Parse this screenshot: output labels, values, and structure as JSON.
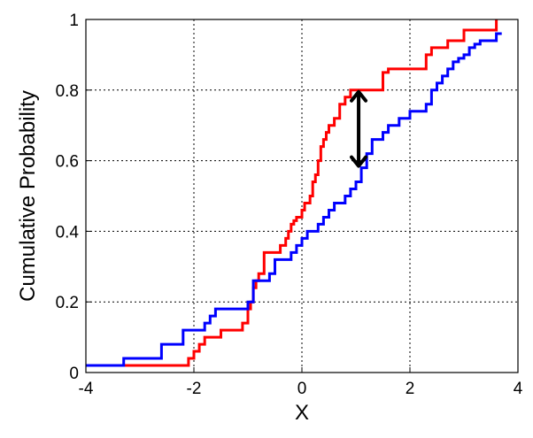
{
  "chart_data": {
    "type": "line",
    "title": "",
    "xlabel": "X",
    "ylabel": "Cumulative Probability",
    "xlim": [
      -4,
      4
    ],
    "ylim": [
      0,
      1
    ],
    "xticks": [
      -4,
      -2,
      0,
      2,
      4
    ],
    "yticks": [
      0,
      0.2,
      0.4,
      0.6,
      0.8,
      1
    ],
    "xtick_labels": [
      "-4",
      "-2",
      "0",
      "2",
      "4"
    ],
    "ytick_labels": [
      "0",
      "0.2",
      "0.4",
      "0.6",
      "0.8",
      "1"
    ],
    "grid": true,
    "grid_style": "dotted",
    "step": true,
    "series": [
      {
        "color": "#ff0000",
        "x": [
          -4.0,
          -2.1,
          -2.0,
          -1.9,
          -1.8,
          -1.5,
          -1.1,
          -1.0,
          -0.95,
          -0.9,
          -0.85,
          -0.8,
          -0.7,
          -0.4,
          -0.3,
          -0.25,
          -0.2,
          -0.15,
          -0.1,
          0.0,
          0.05,
          0.15,
          0.2,
          0.25,
          0.3,
          0.35,
          0.4,
          0.45,
          0.5,
          0.6,
          0.7,
          0.8,
          0.9,
          1.5,
          1.6,
          2.3,
          2.4,
          2.7,
          3.0,
          3.6
        ],
        "y": [
          0.02,
          0.04,
          0.06,
          0.08,
          0.1,
          0.12,
          0.14,
          0.18,
          0.2,
          0.24,
          0.26,
          0.28,
          0.34,
          0.36,
          0.38,
          0.4,
          0.42,
          0.43,
          0.44,
          0.46,
          0.48,
          0.5,
          0.54,
          0.56,
          0.6,
          0.64,
          0.66,
          0.68,
          0.7,
          0.72,
          0.76,
          0.78,
          0.8,
          0.85,
          0.86,
          0.9,
          0.92,
          0.94,
          0.97,
          1.0
        ]
      },
      {
        "color": "#0000ff",
        "x": [
          -4.0,
          -3.3,
          -2.6,
          -2.2,
          -1.8,
          -1.7,
          -1.6,
          -1.5,
          -1.0,
          -0.9,
          -0.6,
          -0.5,
          -0.2,
          -0.1,
          0.0,
          0.1,
          0.3,
          0.4,
          0.5,
          0.6,
          0.8,
          0.9,
          1.0,
          1.1,
          1.2,
          1.3,
          1.5,
          1.6,
          1.8,
          2.0,
          2.3,
          2.4,
          2.5,
          2.6,
          2.7,
          2.8,
          2.9,
          3.0,
          3.1,
          3.2,
          3.3,
          3.6,
          3.7
        ],
        "y": [
          0.02,
          0.04,
          0.08,
          0.12,
          0.14,
          0.16,
          0.18,
          0.18,
          0.2,
          0.26,
          0.28,
          0.32,
          0.34,
          0.36,
          0.38,
          0.4,
          0.42,
          0.44,
          0.46,
          0.48,
          0.5,
          0.52,
          0.54,
          0.58,
          0.62,
          0.66,
          0.68,
          0.7,
          0.72,
          0.74,
          0.76,
          0.8,
          0.82,
          0.84,
          0.86,
          0.88,
          0.89,
          0.9,
          0.92,
          0.93,
          0.94,
          0.96,
          0.96
        ]
      }
    ],
    "annotations": [
      {
        "type": "double-arrow",
        "color": "#000000",
        "x": 1.05,
        "y1": 0.58,
        "y2": 0.8
      }
    ]
  }
}
